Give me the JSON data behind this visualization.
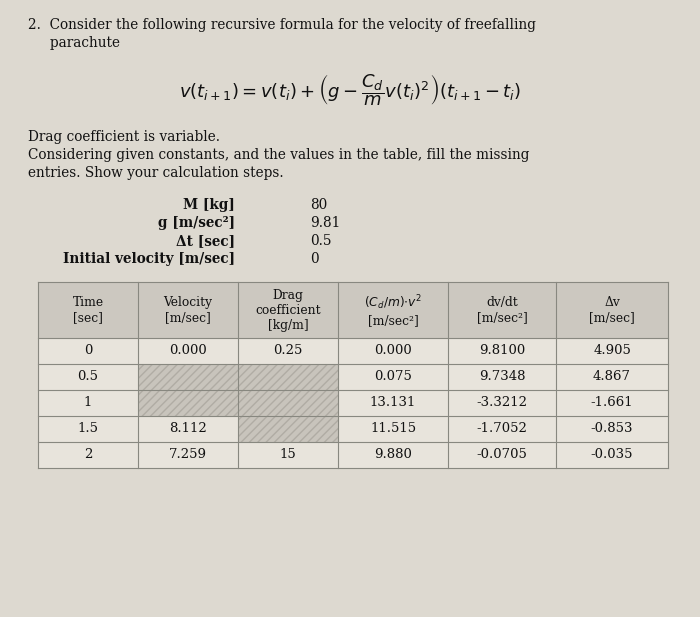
{
  "bg_color": "#ddd9d0",
  "table_bg_light": "#e8e4dc",
  "table_bg_white": "#e0dcd4",
  "header_bg": "#ccc8c0",
  "grid_color": "#888880",
  "text_color": "#111111",
  "text_color2": "#222222",
  "title_line1": "2.  Consider the following recursive formula for the velocity of freefalling",
  "title_line2": "     parachute",
  "drag_line": "Drag coefficient is variable.",
  "consid_line": "Considering given constants, and the values in the table, fill the missing",
  "entries_line": "entries. Show your calculation steps.",
  "const_labels": [
    "M [kg]",
    "g [m/sec²]",
    "Δt [sec]",
    "Initial velocity [m/sec]"
  ],
  "const_values": [
    "80",
    "9.81",
    "0.5",
    "0"
  ],
  "col_headers_l1": [
    "Time",
    "Velocity",
    "Drag",
    "(Cₙ/m)*v²",
    "dv/dt",
    "Δv"
  ],
  "col_headers_l2": [
    "[sec]",
    "[m/sec]",
    "coefficient",
    "[m/sec²]",
    "[m/sec²]",
    "[m/sec]"
  ],
  "col_headers_l3": [
    "",
    "",
    "[kg/m]",
    "",
    "",
    ""
  ],
  "table_data": [
    [
      "0",
      "0.000",
      "0.25",
      "0.000",
      "9.8100",
      "4.905"
    ],
    [
      "0.5",
      "",
      "",
      "0.075",
      "9.7348",
      "4.867"
    ],
    [
      "1",
      "",
      "",
      "13.131",
      "-3.3212",
      "-1.661"
    ],
    [
      "1.5",
      "8.112",
      "",
      "11.515",
      "-1.7052",
      "-0.853"
    ],
    [
      "2",
      "7.259",
      "15",
      "9.880",
      "-0.0705",
      "-0.035"
    ]
  ],
  "figw": 7.0,
  "figh": 6.17,
  "dpi": 100
}
